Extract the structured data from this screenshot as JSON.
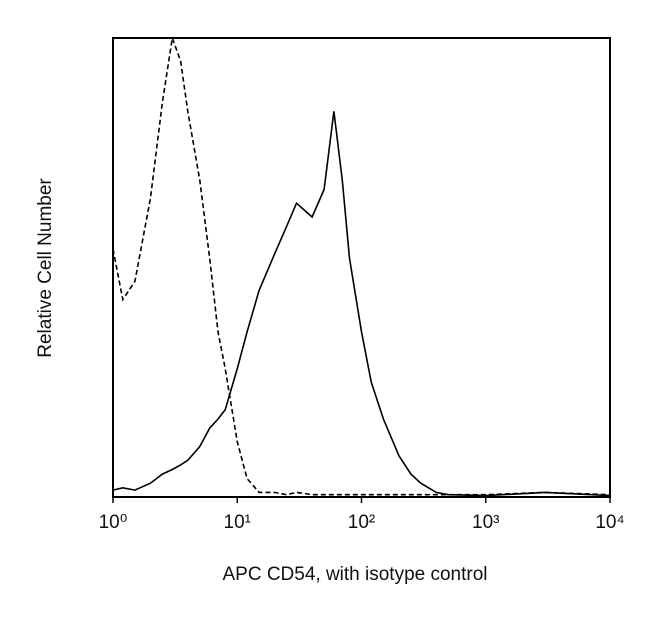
{
  "chart_data": {
    "type": "line",
    "xlabel": "APC CD54, with isotype control",
    "ylabel": "Relative Cell Number",
    "xscale": "log",
    "xlim": [
      1,
      10000
    ],
    "ylim": [
      0,
      100
    ],
    "xticks": [
      {
        "value": 1,
        "label": "10⁰"
      },
      {
        "value": 10,
        "label": "10¹"
      },
      {
        "value": 100,
        "label": "10²"
      },
      {
        "value": 1000,
        "label": "10³"
      },
      {
        "value": 10000,
        "label": "10⁴"
      }
    ],
    "x": [
      1,
      1.2,
      1.5,
      2,
      2.5,
      3,
      3.5,
      4,
      5,
      6,
      7,
      8,
      10,
      12,
      15,
      20,
      25,
      30,
      40,
      50,
      60,
      70,
      80,
      100,
      120,
      150,
      200,
      250,
      300,
      400,
      500,
      1000,
      3000,
      10000
    ],
    "series": [
      {
        "color": "#000000",
        "linestyle": "dashed",
        "values": [
          54,
          43,
          47,
          65,
          86,
          100,
          95,
          84,
          69,
          52,
          36,
          28,
          12,
          4,
          1,
          1,
          0.5,
          1,
          0.5,
          0.5,
          0.5,
          0.5,
          0.5,
          0.5,
          0.5,
          0.5,
          0.5,
          0.5,
          0.5,
          0.5,
          0.5,
          0.5,
          1,
          0.5
        ]
      },
      {
        "color": "#000000",
        "linestyle": "solid",
        "values": [
          1.5,
          2,
          1.5,
          3,
          5,
          6,
          7,
          8,
          11,
          15,
          17,
          19,
          28,
          36,
          45,
          53,
          59,
          64,
          61,
          67,
          84,
          69,
          52,
          36,
          25,
          17,
          9,
          5,
          3,
          1,
          0.5,
          0.3,
          1,
          0.3
        ]
      }
    ]
  }
}
